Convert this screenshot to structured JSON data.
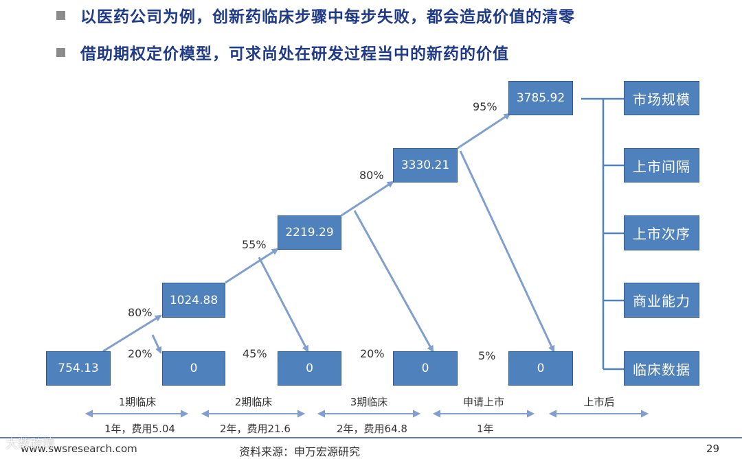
{
  "bullets": [
    "以医药公司为例，创新药临床步骤中每步失败，都会造成价值的清零",
    "借助期权定价模型，可求尚处在研发过程当中的新药的价值"
  ],
  "nodes": {
    "start": "754.13",
    "phase1": "1024.88",
    "phase2": "2219.29",
    "phase3": "3330.21",
    "market": "3785.92",
    "zero": "0"
  },
  "probabilities": {
    "p1_up": "80%",
    "p1_down": "20%",
    "p2_up": "55%",
    "p2_down": "45%",
    "p3_up": "80%",
    "p3_down": "20%",
    "p4_up": "95%",
    "p4_down": "5%"
  },
  "factors": [
    "市场规模",
    "上市间隔",
    "上市次序",
    "商业能力",
    "临床数据"
  ],
  "stages": [
    "1期临床",
    "2期临床",
    "3期临床",
    "申请上市",
    "上市后"
  ],
  "durations": [
    "1年，费用5.04",
    "2年，费用21.6",
    "2年，费用64.8",
    "1年"
  ],
  "footer": {
    "url": "www.swsresearch.com",
    "source": "资料来源：申万宏源研究",
    "page": "29",
    "watermark": "大数跨境"
  },
  "colors": {
    "box": "#4f81bd",
    "arrow": "#7f9fcf",
    "title": "#1f3a8a"
  }
}
